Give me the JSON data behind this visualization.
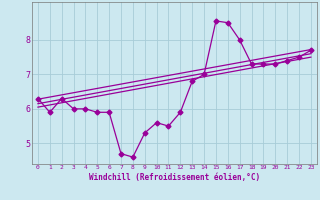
{
  "xlabel": "Windchill (Refroidissement éolien,°C)",
  "bg_color": "#cce8f0",
  "grid_color": "#a8ccd8",
  "line_color": "#990099",
  "spine_color": "#777777",
  "xlim": [
    -0.5,
    23.5
  ],
  "ylim": [
    4.4,
    9.1
  ],
  "yticks": [
    5,
    6,
    7,
    8
  ],
  "xticks": [
    0,
    1,
    2,
    3,
    4,
    5,
    6,
    7,
    8,
    9,
    10,
    11,
    12,
    13,
    14,
    15,
    16,
    17,
    18,
    19,
    20,
    21,
    22,
    23
  ],
  "series1_x": [
    0,
    1,
    2,
    3,
    4,
    5,
    6,
    7,
    8,
    9,
    10,
    11,
    12,
    13,
    14,
    15,
    16,
    17,
    18,
    19,
    20,
    21,
    22,
    23
  ],
  "series1_y": [
    6.3,
    5.9,
    6.3,
    6.0,
    6.0,
    5.9,
    5.9,
    4.7,
    4.6,
    5.3,
    5.6,
    5.5,
    5.9,
    6.8,
    7.0,
    8.55,
    8.5,
    8.0,
    7.3,
    7.3,
    7.3,
    7.4,
    7.5,
    7.7
  ],
  "trend1_x": [
    0,
    23
  ],
  "trend1_y": [
    6.28,
    7.72
  ],
  "trend2_x": [
    0,
    23
  ],
  "trend2_y": [
    6.15,
    7.6
  ],
  "trend3_x": [
    0,
    23
  ],
  "trend3_y": [
    6.05,
    7.5
  ]
}
